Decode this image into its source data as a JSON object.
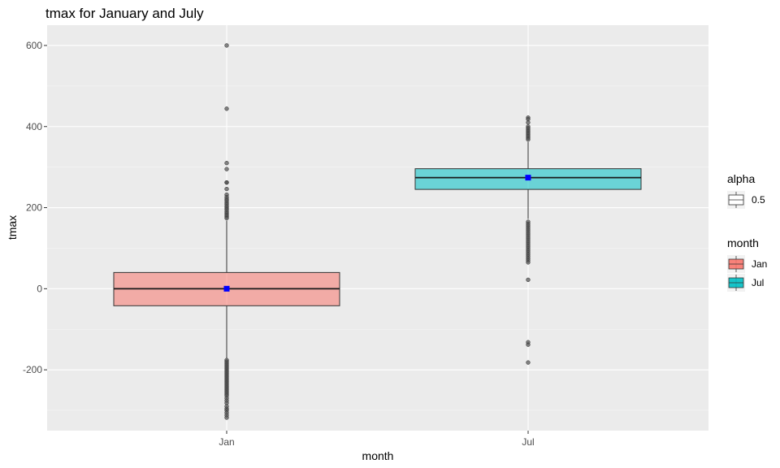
{
  "chart_data": {
    "type": "boxplot",
    "title": "tmax for January and July",
    "xlabel": "month",
    "ylabel": "tmax",
    "categories": [
      "Jan",
      "Jul"
    ],
    "ylim": [
      -350,
      650
    ],
    "yticks": [
      -200,
      0,
      200,
      400,
      600
    ],
    "grid": true,
    "series": [
      {
        "name": "Jan",
        "color": "#F8766D",
        "q1": -42,
        "median": 0,
        "q3": 40,
        "whisker_low": -172,
        "whisker_high": 168,
        "mean": 0,
        "outliers": [
          600,
          444,
          310,
          295,
          262,
          262,
          246,
          232,
          226,
          221,
          217,
          212,
          208,
          203,
          199,
          195,
          190,
          186,
          182,
          178,
          174,
          -176,
          -180,
          -184,
          -188,
          -192,
          -196,
          -200,
          -204,
          -208,
          -212,
          -216,
          -220,
          -224,
          -228,
          -232,
          -236,
          -240,
          -244,
          -248,
          -252,
          -256,
          -260,
          -264,
          -270,
          -276,
          -282,
          -290,
          -296,
          -300,
          -306,
          -312,
          -318
        ]
      },
      {
        "name": "Jul",
        "color": "#00BFC4",
        "q1": 245,
        "median": 274,
        "q3": 296,
        "whisker_low": 172,
        "whisker_high": 362,
        "mean": 274,
        "outliers": [
          422,
          418,
          410,
          400,
          396,
          392,
          388,
          384,
          380,
          376,
          372,
          368,
          165,
          160,
          155,
          150,
          145,
          140,
          135,
          130,
          125,
          120,
          115,
          110,
          105,
          100,
          95,
          90,
          85,
          80,
          75,
          70,
          65,
          22,
          -132,
          -138,
          -182
        ]
      }
    ],
    "legends": [
      {
        "title": "alpha",
        "items": [
          {
            "label": "0.5",
            "fill": "#ffffff"
          }
        ]
      },
      {
        "title": "month",
        "items": [
          {
            "label": "Jan",
            "fill": "#F8766D"
          },
          {
            "label": "Jul",
            "fill": "#00BFC4"
          }
        ]
      }
    ]
  }
}
